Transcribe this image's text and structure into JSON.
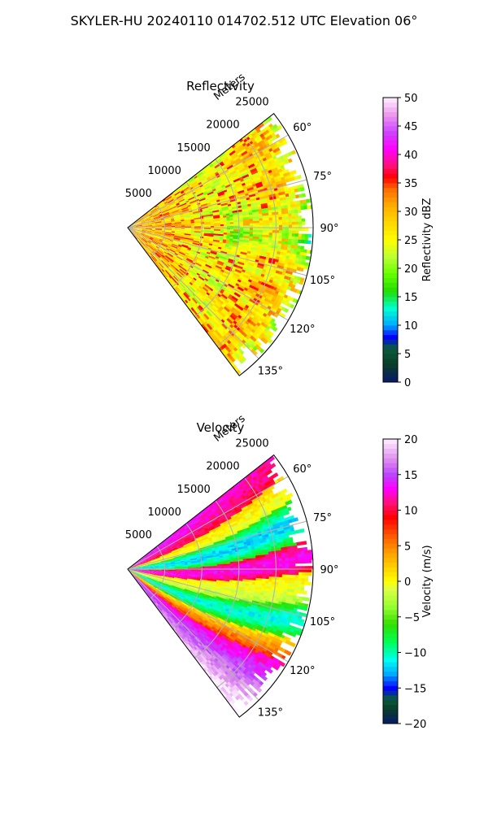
{
  "suptitle": "SKYLER-HU  20240110  014702.512 UTC Elevation 06°",
  "chart_data": [
    {
      "type": "heatmap",
      "subtype": "polar-sector (PPI radar)",
      "title": "Reflectivity",
      "radial_label": "Meters",
      "range_ticks": [
        5000,
        10000,
        15000,
        20000,
        25000
      ],
      "range_tick_labels": [
        "5000",
        "10000",
        "15000",
        "20000",
        "25000"
      ],
      "range_lim": [
        0,
        25000
      ],
      "azimuth_ticks": [
        60,
        75,
        90,
        105,
        120,
        135
      ],
      "azimuth_tick_labels": [
        "60°",
        "75°",
        "90°",
        "105°",
        "120°",
        "135°"
      ],
      "azimuth_lim": [
        52,
        143
      ],
      "grid": true,
      "colorbar": {
        "label": "Reflectivity dBZ",
        "range": [
          0,
          50
        ],
        "ticks": [
          0,
          5,
          10,
          15,
          20,
          25,
          30,
          35,
          40,
          45,
          50
        ],
        "tick_labels": [
          "0",
          "5",
          "10",
          "15",
          "20",
          "25",
          "30",
          "35",
          "40",
          "45",
          "50"
        ]
      },
      "field_description": "mostly 20-35 dBZ, yellow/orange with red streaks near 35 dBZ, green (~20) at far edge"
    },
    {
      "type": "heatmap",
      "subtype": "polar-sector (PPI radar)",
      "title": "Velocity",
      "radial_label": "Meters",
      "range_ticks": [
        5000,
        10000,
        15000,
        20000,
        25000
      ],
      "range_tick_labels": [
        "5000",
        "10000",
        "15000",
        "20000",
        "25000"
      ],
      "range_lim": [
        0,
        25000
      ],
      "azimuth_ticks": [
        60,
        75,
        90,
        105,
        120,
        135
      ],
      "azimuth_tick_labels": [
        "60°",
        "75°",
        "90°",
        "105°",
        "120°",
        "135°"
      ],
      "azimuth_lim": [
        52,
        143
      ],
      "grid": true,
      "colorbar": {
        "label": "Velocity (m/s)",
        "range": [
          -20,
          20
        ],
        "ticks": [
          -20,
          -15,
          -10,
          -5,
          0,
          5,
          10,
          15,
          20
        ],
        "tick_labels": [
          "−20",
          "−15",
          "−10",
          "−5",
          "0",
          "5",
          "10",
          "15",
          "20"
        ]
      },
      "field_description": "bands: red/magenta (~10-15) near 60°, yellow, green/cyan (~-10) near 85°, red near 95°, yellow, green/cyan near 115°, magenta/red near 135°"
    }
  ]
}
